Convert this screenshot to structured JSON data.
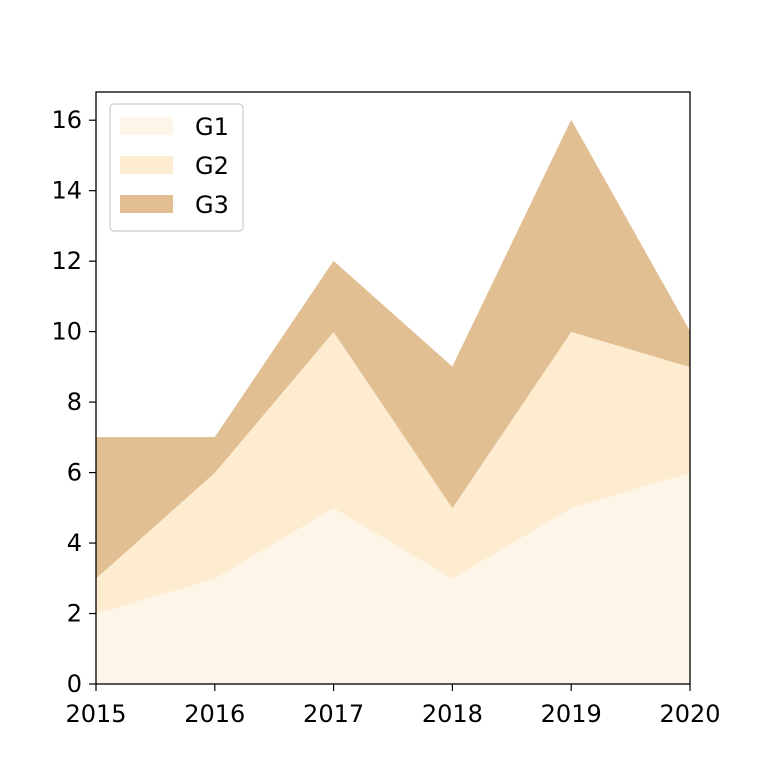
{
  "chart_data": {
    "type": "area",
    "stacked": true,
    "title": "",
    "xlabel": "",
    "ylabel": "",
    "x": [
      2015,
      2016,
      2017,
      2018,
      2019,
      2020
    ],
    "xlim": [
      2015,
      2020
    ],
    "ylim": [
      0,
      16.8
    ],
    "xticks": [
      "2015",
      "2016",
      "2017",
      "2018",
      "2019",
      "2020"
    ],
    "yticks": [
      "0",
      "2",
      "4",
      "6",
      "8",
      "10",
      "12",
      "14",
      "16"
    ],
    "grid": false,
    "legend_position": "top-left",
    "series": [
      {
        "name": "G1",
        "values": [
          2,
          3,
          5,
          3,
          5,
          6
        ],
        "color": "#fdf5e8"
      },
      {
        "name": "G2",
        "values": [
          1,
          3,
          5,
          2,
          5,
          3
        ],
        "color": "#feecd1"
      },
      {
        "name": "G3",
        "values": [
          4,
          1,
          2,
          4,
          6,
          1
        ],
        "color": "#e1bf93"
      }
    ]
  }
}
